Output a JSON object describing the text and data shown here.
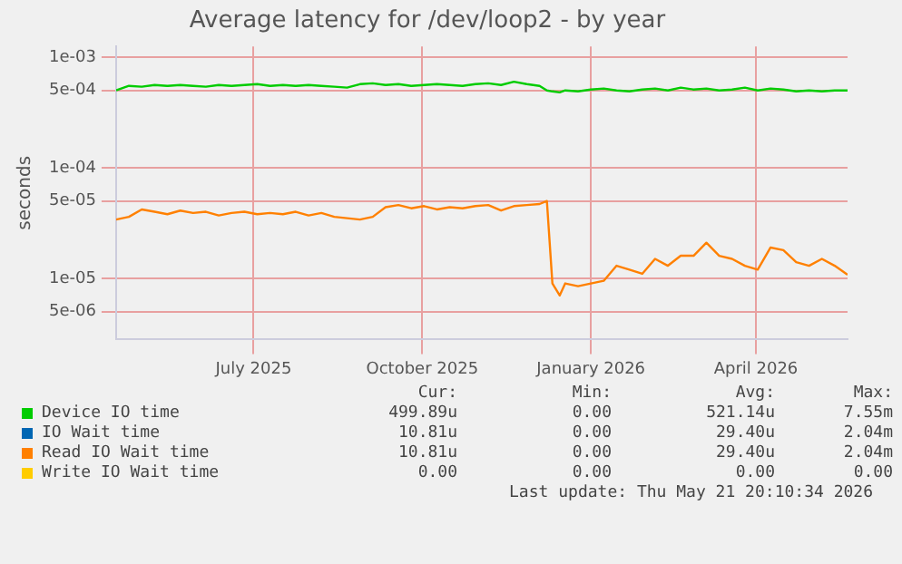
{
  "chart_data": {
    "type": "line",
    "title": "Average latency for /dev/loop2 - by year",
    "ylabel": "seconds",
    "x": [
      "2025-04-17",
      "2025-04-24",
      "2025-05-01",
      "2025-05-08",
      "2025-05-15",
      "2025-05-22",
      "2025-05-29",
      "2025-06-05",
      "2025-06-12",
      "2025-06-19",
      "2025-06-26",
      "2025-07-03",
      "2025-07-10",
      "2025-07-17",
      "2025-07-24",
      "2025-07-31",
      "2025-08-07",
      "2025-08-14",
      "2025-08-21",
      "2025-08-28",
      "2025-09-04",
      "2025-09-11",
      "2025-09-18",
      "2025-09-25",
      "2025-10-02",
      "2025-10-09",
      "2025-10-16",
      "2025-10-23",
      "2025-10-30",
      "2025-11-06",
      "2025-11-13",
      "2025-11-20",
      "2025-11-27",
      "2025-12-04",
      "2025-12-08",
      "2025-12-11",
      "2025-12-15",
      "2025-12-18",
      "2025-12-25",
      "2026-01-01",
      "2026-01-08",
      "2026-01-15",
      "2026-01-22",
      "2026-01-29",
      "2026-02-05",
      "2026-02-12",
      "2026-02-19",
      "2026-02-26",
      "2026-03-05",
      "2026-03-12",
      "2026-03-19",
      "2026-03-26",
      "2026-04-02",
      "2026-04-09",
      "2026-04-16",
      "2026-04-23",
      "2026-04-30",
      "2026-05-07",
      "2026-05-14",
      "2026-05-21"
    ],
    "series": [
      {
        "name": "Device IO time",
        "color": "#00cc00",
        "values": [
          0.0005,
          0.00055,
          0.00054,
          0.00056,
          0.00055,
          0.00056,
          0.00055,
          0.00054,
          0.00056,
          0.00055,
          0.00056,
          0.00057,
          0.00055,
          0.00056,
          0.00055,
          0.00056,
          0.00055,
          0.00054,
          0.00053,
          0.00057,
          0.00058,
          0.00056,
          0.00057,
          0.00055,
          0.00056,
          0.00057,
          0.00056,
          0.00055,
          0.00057,
          0.00058,
          0.00056,
          0.0006,
          0.00057,
          0.00055,
          0.0005,
          0.00049,
          0.00048,
          0.0005,
          0.00049,
          0.00051,
          0.00052,
          0.0005,
          0.00049,
          0.00051,
          0.00052,
          0.0005,
          0.00053,
          0.00051,
          0.00052,
          0.0005,
          0.00051,
          0.00053,
          0.0005,
          0.00052,
          0.00051,
          0.00049,
          0.0005,
          0.00049,
          0.0005,
          0.0005
        ]
      },
      {
        "name": "IO Wait time",
        "color": "#0066b3",
        "values": [
          null,
          null,
          null,
          null,
          null,
          null,
          null,
          null,
          null,
          null,
          null,
          null,
          null,
          null,
          null,
          null,
          null,
          null,
          null,
          null,
          null,
          null,
          null,
          null,
          null,
          null,
          null,
          null,
          null,
          null,
          null,
          null,
          null,
          null,
          null,
          null,
          null,
          null,
          null,
          null,
          null,
          null,
          null,
          null,
          null,
          null,
          null,
          null,
          null,
          null,
          null,
          null,
          null,
          null,
          null,
          null,
          null,
          null,
          null,
          null
        ]
      },
      {
        "name": "Read IO Wait time",
        "color": "#ff8000",
        "values": [
          3.4e-05,
          3.6e-05,
          4.2e-05,
          4e-05,
          3.8e-05,
          4.1e-05,
          3.9e-05,
          4e-05,
          3.7e-05,
          3.9e-05,
          4e-05,
          3.8e-05,
          3.9e-05,
          3.8e-05,
          4e-05,
          3.7e-05,
          3.9e-05,
          3.6e-05,
          3.5e-05,
          3.4e-05,
          3.6e-05,
          4.4e-05,
          4.6e-05,
          4.3e-05,
          4.5e-05,
          4.2e-05,
          4.4e-05,
          4.3e-05,
          4.5e-05,
          4.6e-05,
          4.1e-05,
          4.5e-05,
          4.6e-05,
          4.7e-05,
          5e-05,
          9e-06,
          7e-06,
          9e-06,
          8.5e-06,
          9e-06,
          9.5e-06,
          1.3e-05,
          1.2e-05,
          1.1e-05,
          1.5e-05,
          1.3e-05,
          1.6e-05,
          1.6e-05,
          2.1e-05,
          1.6e-05,
          1.5e-05,
          1.3e-05,
          1.2e-05,
          1.9e-05,
          1.8e-05,
          1.4e-05,
          1.3e-05,
          1.5e-05,
          1.3e-05,
          1.08e-05
        ]
      },
      {
        "name": "Write IO Wait time",
        "color": "#ffcc00",
        "values": [
          null,
          null,
          null,
          null,
          null,
          null,
          null,
          null,
          null,
          null,
          null,
          null,
          null,
          null,
          null,
          null,
          null,
          null,
          null,
          null,
          null,
          null,
          null,
          null,
          null,
          null,
          null,
          null,
          null,
          null,
          null,
          null,
          null,
          null,
          null,
          null,
          null,
          null,
          null,
          null,
          null,
          null,
          null,
          null,
          null,
          null,
          null,
          null,
          null,
          null,
          null,
          null,
          null,
          null,
          null,
          null,
          null,
          null,
          null,
          null
        ]
      }
    ],
    "xlim": [
      "2025-04-17",
      "2026-05-21"
    ],
    "xticks": [
      {
        "value": "2025-07-01",
        "label": "July 2025"
      },
      {
        "value": "2025-10-01",
        "label": "October 2025"
      },
      {
        "value": "2026-01-01",
        "label": "January 2026"
      },
      {
        "value": "2026-04-01",
        "label": "April 2026"
      }
    ],
    "ylim": [
      2.8e-06,
      0.00125
    ],
    "yticks": [
      {
        "value": 0.001,
        "label": "1e-03"
      },
      {
        "value": 0.0005,
        "label": "5e-04"
      },
      {
        "value": 0.0001,
        "label": "1e-04"
      },
      {
        "value": 5e-05,
        "label": "5e-05"
      },
      {
        "value": 1e-05,
        "label": "1e-05"
      },
      {
        "value": 5e-06,
        "label": "5e-06"
      }
    ],
    "log": "y",
    "grid": true,
    "legend": "bottom",
    "marker": "none",
    "line_style": "solid",
    "annotations": [
      "Cur:",
      "Min:",
      "Avg:",
      "Max:",
      "499.89u",
      "0.00",
      "521.14u",
      "7.55m",
      "10.81u",
      "0.00",
      "29.40u",
      "2.04m",
      "10.81u",
      "0.00",
      "29.40u",
      "2.04m",
      "0.00",
      "0.00",
      "0.00",
      "0.00",
      "Last update: Thu May 21 20:10:34 2026"
    ]
  }
}
